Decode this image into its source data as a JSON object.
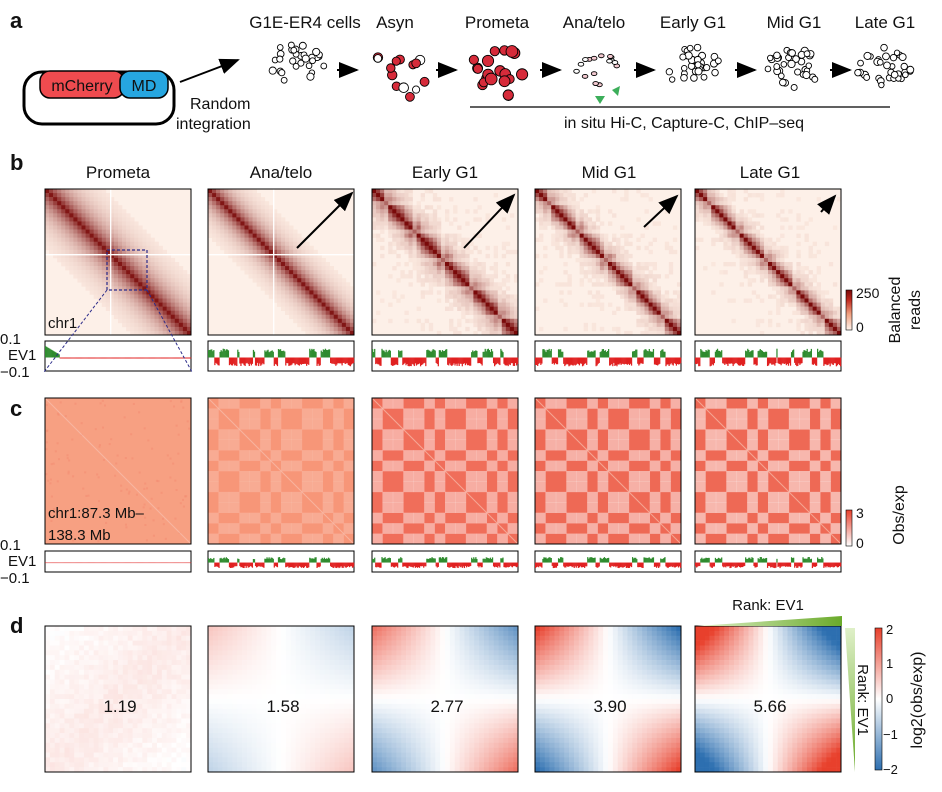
{
  "panel_labels": {
    "a": "a",
    "b": "b",
    "c": "c",
    "d": "d"
  },
  "panel_a": {
    "construct_left": "mCherry",
    "construct_right": "MD",
    "integration_text": [
      "Random",
      "integration"
    ],
    "stages": [
      "G1E-ER4 cells",
      "Asyn",
      "Prometa",
      "Ana/telo",
      "Early G1",
      "Mid G1",
      "Late G1"
    ],
    "assays": "in situ Hi-C, Capture-C, ChIP–seq"
  },
  "column_titles": [
    "Prometa",
    "Ana/telo",
    "Early G1",
    "Mid G1",
    "Late G1"
  ],
  "panel_b": {
    "region_label": "chr1",
    "ev_ticks": [
      "0.1",
      "EV1",
      "−0.1"
    ],
    "colorbar": {
      "max": "250",
      "min": "0",
      "label": [
        "Balanced",
        "reads"
      ],
      "low_color": "#fff3ec",
      "high_color": "#7a0a0a"
    }
  },
  "panel_c": {
    "region_label": [
      "chr1:87.3 Mb–",
      "138.3 Mb"
    ],
    "ev_ticks": [
      "0.1",
      "EV1",
      "−0.1"
    ],
    "colorbar": {
      "max": "3",
      "min": "0",
      "label": "Obs/exp",
      "low_color": "#ffffff",
      "high_color": "#e8402c"
    }
  },
  "panel_d": {
    "values": [
      1.19,
      1.58,
      2.77,
      3.9,
      5.66
    ],
    "value_labels": [
      "1.19",
      "1.58",
      "2.77",
      "3.90",
      "5.66"
    ],
    "rank_top": "Rank: EV1",
    "rank_side": "Rank: EV1",
    "colorbar": {
      "ticks": [
        "2",
        "1",
        "0",
        "−1",
        "−2"
      ],
      "label": "log2(obs/exp)",
      "pos_color": "#e8402c",
      "neg_color": "#2d6fb0"
    }
  },
  "colors": {
    "ev_pos": "#2e8b2e",
    "ev_neg": "#e02020",
    "cell_red": "#d62b3a",
    "arrow_green": "#3cae5a"
  }
}
